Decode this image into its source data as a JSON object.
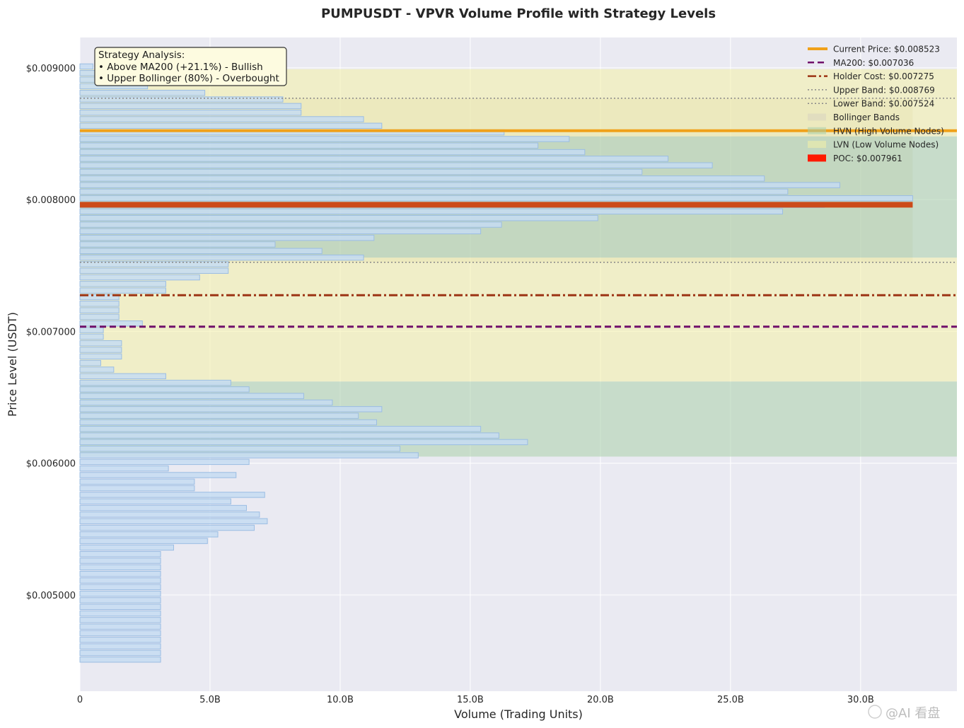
{
  "chart_data": {
    "type": "bar",
    "orientation": "horizontal",
    "title": "PUMPUSDT - VPVR Volume Profile with Strategy Levels",
    "xlabel": "Volume (Trading Units)",
    "ylabel": "Price Level (USDT)",
    "xlim": [
      0,
      33.7
    ],
    "ylim": [
      0.00427,
      0.00923
    ],
    "x_unit": "B",
    "x_ticks": [
      0,
      5,
      10,
      15,
      20,
      25,
      30
    ],
    "x_tick_labels": [
      "0",
      "5.0B",
      "10.0B",
      "15.0B",
      "20.0B",
      "25.0B",
      "30.0B"
    ],
    "y_ticks": [
      0.005,
      0.006,
      0.007,
      0.008,
      0.009
    ],
    "y_tick_labels": [
      "$0.005000",
      "$0.006000",
      "$0.007000",
      "$0.008000",
      "$0.009000"
    ],
    "grid": true,
    "legend_position": "top-right",
    "price_bins": [
      0.00901,
      0.00896,
      0.00891,
      0.00886,
      0.00881,
      0.00876,
      0.00871,
      0.00866,
      0.00861,
      0.00856,
      0.00851,
      0.00846,
      0.00841,
      0.00836,
      0.00831,
      0.00826,
      0.00821,
      0.00816,
      0.00811,
      0.00806,
      0.00801,
      0.00796,
      0.00791,
      0.00786,
      0.00781,
      0.00776,
      0.00771,
      0.00766,
      0.00761,
      0.00756,
      0.00751,
      0.00746,
      0.00741,
      0.00736,
      0.00731,
      0.00726,
      0.00721,
      0.00716,
      0.00711,
      0.00706,
      0.00701,
      0.00696,
      0.00691,
      0.00686,
      0.00681,
      0.00676,
      0.00671,
      0.00666,
      0.00661,
      0.00656,
      0.00651,
      0.00646,
      0.00641,
      0.00636,
      0.00631,
      0.00626,
      0.00621,
      0.00616,
      0.00611,
      0.00606,
      0.00601,
      0.00596,
      0.00591,
      0.00586,
      0.00581,
      0.00576,
      0.00571,
      0.00566,
      0.00561,
      0.00556,
      0.00551,
      0.00546,
      0.00541,
      0.00536,
      0.00531,
      0.00526,
      0.00521,
      0.00516,
      0.00511,
      0.00506,
      0.00501,
      0.00496,
      0.00491,
      0.00486,
      0.00481,
      0.00476,
      0.00471,
      0.00466,
      0.00461,
      0.00456,
      0.00451
    ],
    "volumes": [
      0.5,
      0.8,
      1.2,
      2.6,
      4.8,
      7.8,
      8.5,
      8.5,
      10.9,
      11.6,
      16.3,
      18.8,
      17.6,
      19.4,
      22.6,
      24.3,
      21.6,
      26.3,
      29.2,
      27.2,
      32.0,
      28.6,
      27.0,
      19.9,
      16.2,
      15.4,
      11.3,
      7.5,
      9.3,
      10.9,
      5.7,
      5.7,
      4.6,
      3.3,
      3.3,
      1.5,
      1.5,
      1.5,
      1.5,
      2.4,
      0.9,
      0.9,
      1.6,
      1.6,
      1.6,
      0.8,
      1.3,
      3.3,
      5.8,
      6.5,
      8.6,
      9.7,
      11.6,
      10.7,
      11.4,
      15.4,
      16.1,
      17.2,
      12.3,
      13.0,
      6.5,
      3.4,
      6.0,
      4.4,
      4.4,
      7.1,
      5.8,
      6.4,
      6.9,
      7.2,
      6.7,
      5.3,
      4.9,
      3.6,
      3.1,
      3.1,
      3.1,
      3.1,
      3.1,
      3.1,
      3.1,
      3.1,
      3.1,
      3.1,
      3.1,
      3.1,
      3.1,
      3.1,
      3.1,
      3.1,
      3.1
    ],
    "poc": {
      "price": 0.007961,
      "volume": 32.0,
      "color": "#cc4a1a"
    },
    "horizontal_levels": [
      {
        "name": "Current Price",
        "value": 0.008523,
        "color": "#f0a11a",
        "style": "solid"
      },
      {
        "name": "MA200",
        "value": 0.007036,
        "color": "#70106a",
        "style": "dashed"
      },
      {
        "name": "Holder Cost",
        "value": 0.007275,
        "color": "#9c3414",
        "style": "dashdot"
      },
      {
        "name": "Upper Band",
        "value": 0.008769,
        "color": "#888888",
        "style": "dotted"
      },
      {
        "name": "Lower Band",
        "value": 0.007524,
        "color": "#888888",
        "style": "dotted"
      }
    ],
    "zones": [
      {
        "name": "Bollinger Bands",
        "from": 0.007524,
        "to": 0.008769,
        "x_to": 32.0,
        "color": "#d9d4c0"
      },
      {
        "name": "HVN (High Volume Nodes)",
        "from": 0.00605,
        "to": 0.00662,
        "color": "#a9cfa9"
      },
      {
        "name": "HVN (High Volume Nodes)",
        "from": 0.00756,
        "to": 0.00848,
        "color": "#a9cfa9"
      },
      {
        "name": "LVN (Low Volume Nodes)",
        "from": 0.00662,
        "to": 0.00756,
        "color": "#f4f0a5"
      },
      {
        "name": "LVN (Low Volume Nodes)",
        "from": 0.00848,
        "to": 0.00899,
        "color": "#f4f0a5"
      }
    ],
    "legend": [
      {
        "label": "Current Price: $0.008523",
        "kind": "line",
        "style": "solid",
        "color": "#f0a11a"
      },
      {
        "label": "MA200: $0.007036",
        "kind": "line",
        "style": "dashed",
        "color": "#70106a"
      },
      {
        "label": "Holder Cost: $0.007275",
        "kind": "line",
        "style": "dashdot",
        "color": "#9c3414"
      },
      {
        "label": "Upper Band: $0.008769",
        "kind": "line",
        "style": "dotted",
        "color": "#888888"
      },
      {
        "label": "Lower Band: $0.007524",
        "kind": "line",
        "style": "dotted",
        "color": "#888888"
      },
      {
        "label": "Bollinger Bands",
        "kind": "patch",
        "color": "#d9d4c0"
      },
      {
        "label": "HVN (High Volume Nodes)",
        "kind": "patch",
        "color": "#a9cfa9"
      },
      {
        "label": "LVN (Low Volume Nodes)",
        "kind": "patch",
        "color": "#f4f0a5"
      },
      {
        "label": "POC: $0.007961",
        "kind": "patch",
        "color": "#ff1a00"
      }
    ],
    "annotation": {
      "lines": [
        "Strategy Analysis:",
        "• Above MA200 (+21.1%) - Bullish",
        "• Upper Bollinger (80%) - Overbought"
      ]
    }
  },
  "watermark": {
    "text": "@AI 看盘"
  },
  "colors": {
    "plot_background": "#eaeaf2",
    "bar_fill": "#c6dcf2",
    "bar_edge": "#9bbde3",
    "grid": "#ffffff"
  }
}
